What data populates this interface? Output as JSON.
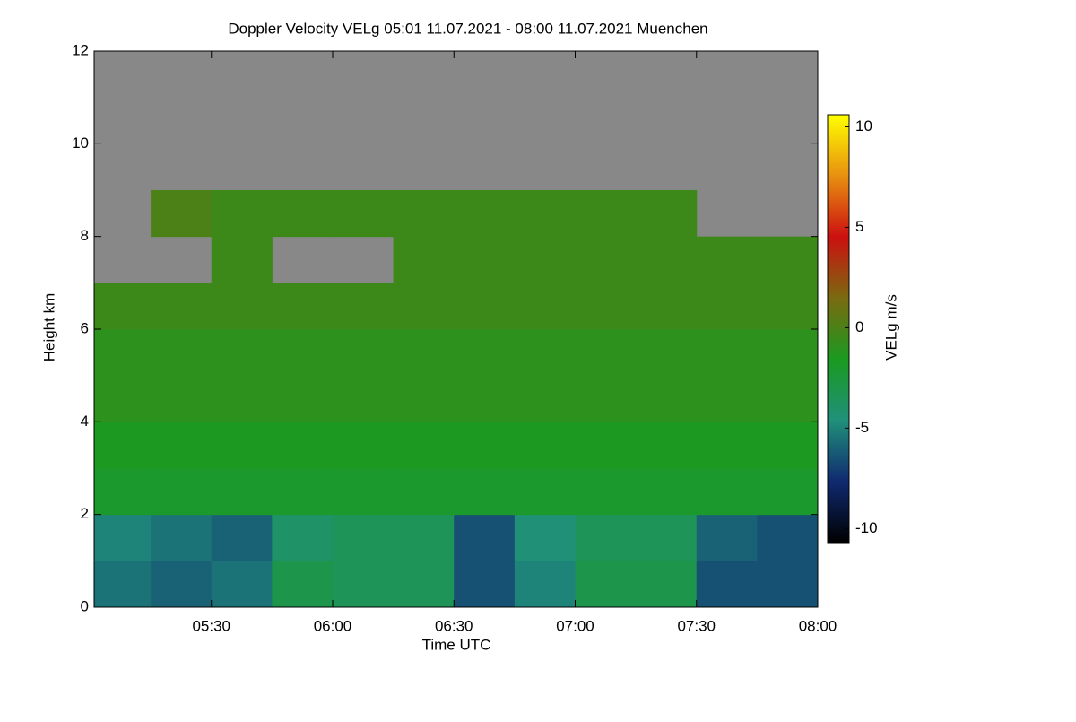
{
  "chart_data": {
    "type": "heatmap",
    "title": "Doppler Velocity VELg   05:01 11.07.2021 - 08:00 11.07.2021 Muenchen",
    "x_label": "Time UTC",
    "y_label": "Height km",
    "colorbar_label": "VELg m/s",
    "xlim": [
      "05:01",
      "08:00"
    ],
    "xticks": [
      "05:30",
      "06:00",
      "06:30",
      "07:00",
      "07:30",
      "08:00"
    ],
    "ylim": [
      0,
      12
    ],
    "yticks": [
      0,
      2,
      4,
      6,
      8,
      10,
      12
    ],
    "zlim": [
      -10.7,
      10.6
    ],
    "zticks": [
      -10,
      -5,
      0,
      5,
      10
    ],
    "colormap": [
      "#000000",
      "#102a70",
      "#20907a",
      "#1a9a20",
      "#7a6a10",
      "#cc1010",
      "#e89010",
      "#ffff00"
    ],
    "nodata_color": "#888888",
    "x": [
      "05:01",
      "05:15",
      "05:30",
      "05:45",
      "06:00",
      "06:15",
      "06:30",
      "06:45",
      "07:00",
      "07:15",
      "07:30",
      "07:45",
      "08:00"
    ],
    "y": [
      0,
      1,
      2,
      3,
      4,
      5,
      6,
      7,
      8,
      9,
      10,
      11,
      12
    ],
    "z": [
      [
        -5.5,
        -6,
        -5.5,
        -3,
        -3.5,
        -3.5,
        -6.5,
        -5,
        -3,
        -3,
        -6.5,
        -6.5
      ],
      [
        -5,
        -5.5,
        -6,
        -4,
        -3.5,
        -3.5,
        -6.5,
        -4.5,
        -3.5,
        -3.5,
        -6,
        -6.5
      ],
      [
        -2,
        -2,
        -2,
        -2,
        -2,
        -2,
        -2,
        -2,
        -2,
        -2,
        -2,
        -2
      ],
      [
        -1.5,
        -1.5,
        -1.5,
        -1.5,
        -1.5,
        -1.5,
        -1.5,
        -1.5,
        -1.5,
        -1.5,
        -1.5,
        -1.5
      ],
      [
        -1,
        -1,
        -1,
        -1,
        -1,
        -1,
        -1,
        -1,
        -1,
        -1,
        -1,
        -1
      ],
      [
        -1,
        -1,
        -1,
        -1,
        -1,
        -1,
        -1,
        -1,
        -1,
        -1,
        -1,
        -1
      ],
      [
        -0.5,
        -0.5,
        -0.5,
        -0.5,
        -0.5,
        -0.5,
        -0.5,
        -0.5,
        -0.5,
        -0.5,
        -0.5,
        -0.5
      ],
      [
        null,
        null,
        -0.5,
        null,
        null,
        -0.5,
        -0.5,
        -0.5,
        -0.5,
        -0.5,
        -0.5,
        -0.5
      ],
      [
        null,
        0,
        -0.5,
        -0.5,
        -0.5,
        -0.5,
        -0.5,
        -0.5,
        -0.5,
        -0.5,
        null,
        null
      ],
      [
        null,
        null,
        null,
        null,
        null,
        null,
        null,
        null,
        null,
        null,
        null,
        null
      ],
      [
        null,
        null,
        null,
        null,
        null,
        null,
        null,
        null,
        null,
        null,
        null,
        null
      ],
      [
        null,
        null,
        null,
        null,
        null,
        null,
        null,
        null,
        null,
        null,
        null,
        null
      ]
    ]
  }
}
